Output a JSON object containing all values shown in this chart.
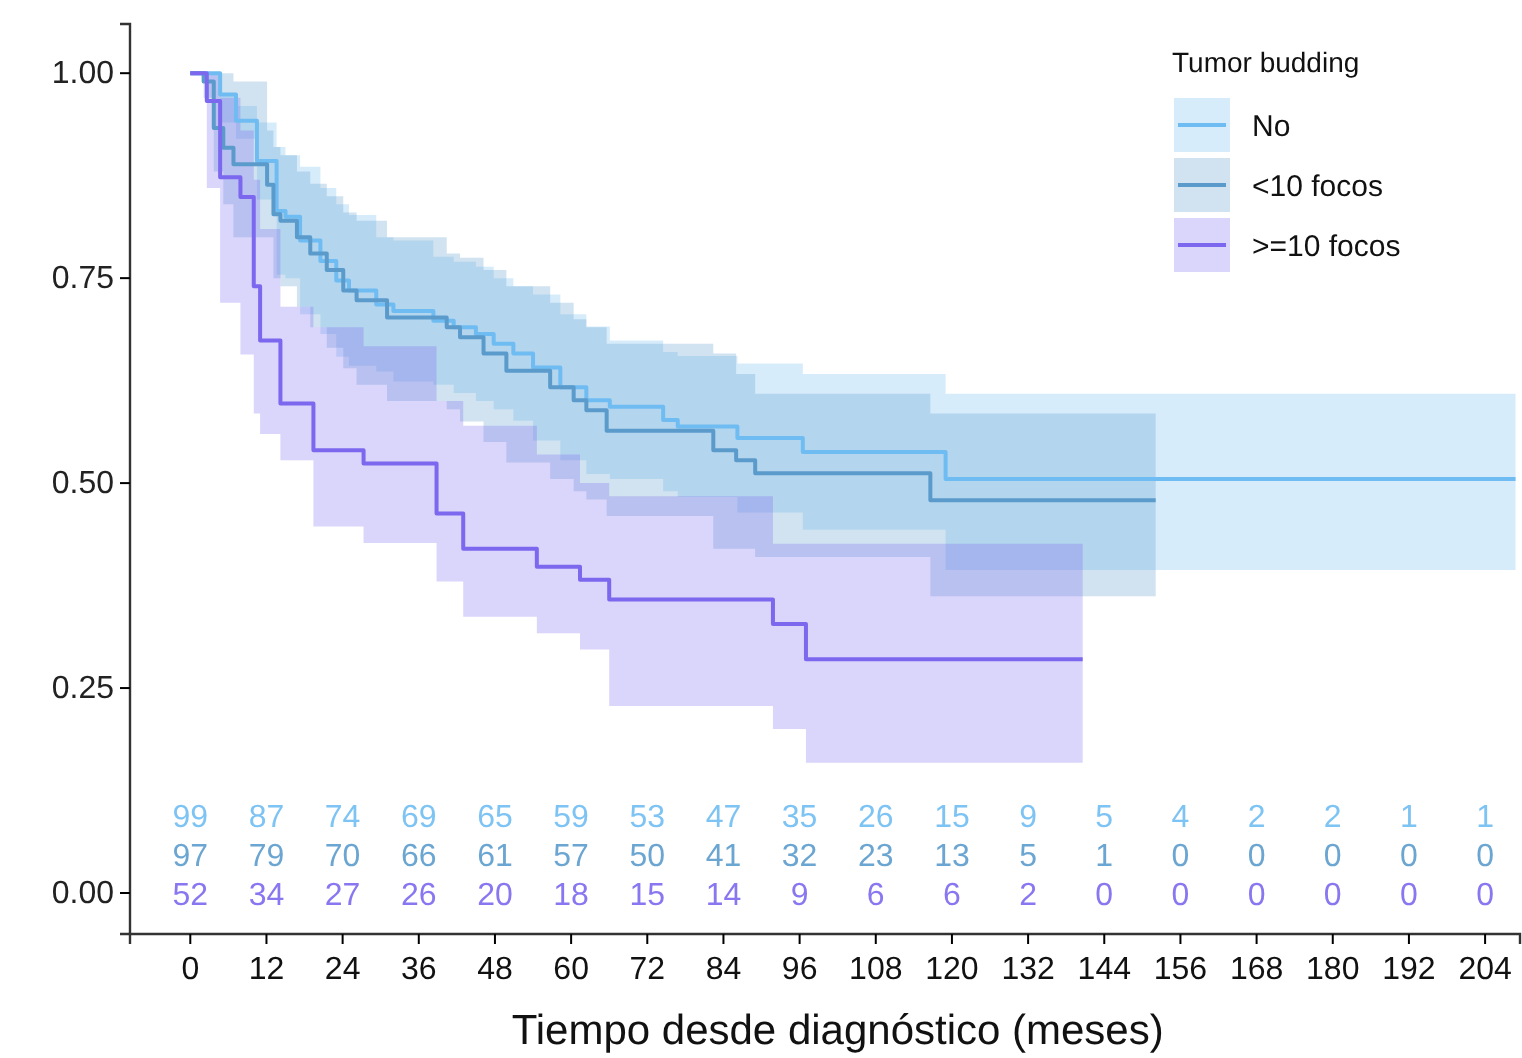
{
  "chart_data": {
    "type": "step",
    "xlabel": "Tiempo desde diagnóstico (meses)",
    "legend_title": "Tumor budding",
    "legend": "top right",
    "xlim": [
      -9.5,
      209.5
    ],
    "ylim": [
      -0.05,
      1.06
    ],
    "xticks": [
      0,
      12,
      24,
      36,
      48,
      60,
      72,
      84,
      96,
      108,
      120,
      132,
      144,
      156,
      168,
      180,
      192,
      204
    ],
    "yticks": [
      {
        "value": 0,
        "label": "0.00"
      },
      {
        "value": 0.25,
        "label": "0.25"
      },
      {
        "value": 0.5,
        "label": "0.50"
      },
      {
        "value": 0.75,
        "label": "0.75"
      },
      {
        "value": 1,
        "label": "1.00"
      }
    ],
    "series": [
      {
        "name": "No",
        "color": "#6fbcf2",
        "x": [
          0,
          4.7,
          7.2,
          10.5,
          13.6,
          15,
          17.3,
          20.5,
          23,
          25,
          29.3,
          32,
          38.3,
          41.5,
          45,
          47.8,
          50.9,
          54,
          58.3,
          62.4,
          66.1,
          74.5,
          76.8,
          86.2,
          96.5,
          119,
          208.8
        ],
        "values": [
          1,
          0.974,
          0.942,
          0.893,
          0.832,
          0.825,
          0.796,
          0.771,
          0.747,
          0.735,
          0.718,
          0.71,
          0.698,
          0.69,
          0.682,
          0.67,
          0.658,
          0.641,
          0.617,
          0.601,
          0.593,
          0.577,
          0.569,
          0.555,
          0.538,
          0.505,
          0.505
        ],
        "upper": [
          1,
          0.975,
          0.96,
          0.94,
          0.91,
          0.9,
          0.886,
          0.86,
          0.84,
          0.827,
          0.8,
          0.796,
          0.776,
          0.77,
          0.764,
          0.75,
          0.74,
          0.73,
          0.706,
          0.691,
          0.674,
          0.66,
          0.655,
          0.646,
          0.633,
          0.609,
          0.609
        ],
        "lower": [
          1,
          0.94,
          0.92,
          0.846,
          0.754,
          0.75,
          0.706,
          0.682,
          0.654,
          0.643,
          0.636,
          0.624,
          0.62,
          0.61,
          0.6,
          0.59,
          0.576,
          0.552,
          0.528,
          0.511,
          0.505,
          0.49,
          0.483,
          0.464,
          0.443,
          0.394,
          0.394
        ]
      },
      {
        "name": "<10 focos",
        "color": "#5b9bcc",
        "x": [
          0,
          2.1,
          3.7,
          5.2,
          6.8,
          12.1,
          13.1,
          14.2,
          16.8,
          18.9,
          21.5,
          24.1,
          26.2,
          31,
          40.4,
          42.5,
          46.2,
          49.8,
          56.7,
          60.4,
          62.4,
          65.6,
          82.4,
          86,
          89,
          116.6,
          152.1
        ],
        "values": [
          1,
          0.99,
          0.933,
          0.909,
          0.889,
          0.864,
          0.828,
          0.82,
          0.8,
          0.78,
          0.76,
          0.735,
          0.723,
          0.702,
          0.69,
          0.678,
          0.658,
          0.637,
          0.617,
          0.601,
          0.589,
          0.564,
          0.54,
          0.528,
          0.512,
          0.479,
          0.479
        ],
        "upper": [
          1,
          1,
          1,
          1,
          0.99,
          0.93,
          0.91,
          0.9,
          0.88,
          0.865,
          0.85,
          0.83,
          0.82,
          0.8,
          0.78,
          0.775,
          0.76,
          0.74,
          0.72,
          0.7,
          0.69,
          0.67,
          0.658,
          0.633,
          0.609,
          0.585,
          0.585
        ],
        "lower": [
          1,
          0.97,
          0.88,
          0.84,
          0.8,
          0.8,
          0.75,
          0.74,
          0.715,
          0.69,
          0.665,
          0.64,
          0.62,
          0.6,
          0.59,
          0.575,
          0.55,
          0.525,
          0.505,
          0.49,
          0.48,
          0.46,
          0.42,
          0.42,
          0.41,
          0.362,
          0.362
        ]
      },
      {
        "name": ">=10 focos",
        "color": "#7b68ee",
        "x": [
          0,
          2.6,
          4.7,
          7.9,
          10,
          11,
          14.2,
          19.4,
          27.3,
          38.8,
          43,
          54.6,
          61.4,
          66,
          91.8,
          97,
          140.6
        ],
        "values": [
          1,
          0.966,
          0.873,
          0.849,
          0.74,
          0.674,
          0.597,
          0.54,
          0.524,
          0.463,
          0.42,
          0.398,
          0.382,
          0.358,
          0.328,
          0.285,
          0.285
        ],
        "upper": [
          1,
          1,
          0.97,
          0.93,
          0.87,
          0.81,
          0.715,
          0.69,
          0.667,
          0.6,
          0.57,
          0.535,
          0.5,
          0.484,
          0.426,
          0.426,
          0.426
        ],
        "lower": [
          1,
          0.86,
          0.72,
          0.657,
          0.585,
          0.56,
          0.528,
          0.447,
          0.427,
          0.38,
          0.337,
          0.317,
          0.297,
          0.228,
          0.2,
          0.159,
          0.159
        ]
      }
    ],
    "annotations": [
      "99",
      "87",
      "74",
      "69",
      "65",
      "59",
      "53",
      "47",
      "35",
      "26",
      "15",
      "9",
      "5",
      "4",
      "2",
      "2",
      "1",
      "1",
      "97",
      "79",
      "70",
      "66",
      "61",
      "57",
      "50",
      "41",
      "32",
      "23",
      "13",
      "5",
      "1",
      "0",
      "0",
      "0",
      "0",
      "0",
      "52",
      "34",
      "27",
      "26",
      "20",
      "18",
      "15",
      "14",
      "9",
      "6",
      "6",
      "2",
      "0",
      "0",
      "0",
      "0",
      "0",
      "0"
    ]
  }
}
